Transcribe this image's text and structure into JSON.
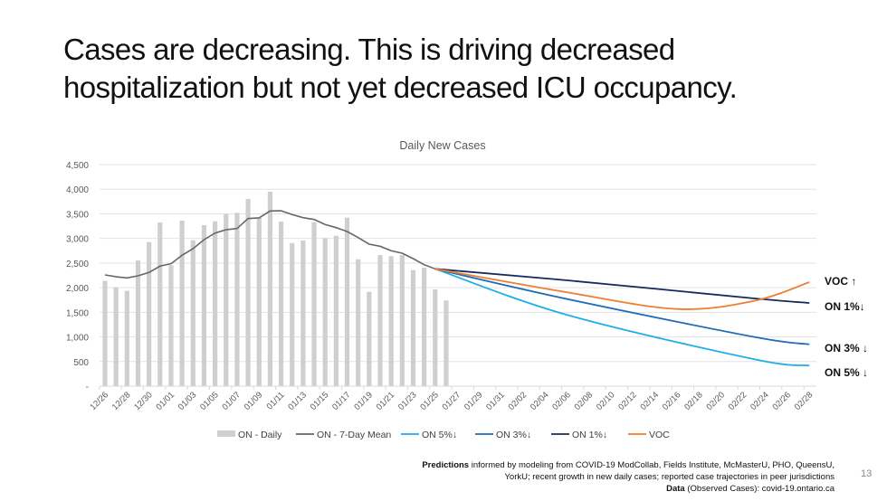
{
  "slide": {
    "title": "Cases are decreasing. This is driving decreased hospitalization but not yet decreased ICU occupancy.",
    "page_number": "13",
    "footer": {
      "predictions_label": "Predictions",
      "predictions_text": " informed by modeling from COVID-19 ModCollab, Fields Institute, McMasterU, PHO, QueensU, YorkU; recent growth in new daily cases; reported case trajectories in peer jurisdictions",
      "data_label": "Data",
      "data_text": " (Observed Cases): covid-19.ontario.ca"
    },
    "side_labels": {
      "voc": "VOC ↑",
      "on1": "ON 1%↓",
      "on3": "ON 3% ↓",
      "on5": "ON 5% ↓"
    }
  },
  "chart_data": {
    "type": "bar",
    "title": "Daily New Cases",
    "xlabel": "",
    "ylabel": "",
    "ylim": [
      0,
      4500
    ],
    "yticks": [
      0,
      500,
      1000,
      1500,
      2000,
      2500,
      3000,
      3500,
      4000,
      4500
    ],
    "ytick_labels": [
      "-",
      "500",
      "1,000",
      "1,500",
      "2,000",
      "2,500",
      "3,000",
      "3,500",
      "4,000",
      "4,500"
    ],
    "grid": true,
    "legend_position": "bottom",
    "x": [
      "12/26",
      "12/27",
      "12/28",
      "12/29",
      "12/30",
      "12/31",
      "01/01",
      "01/02",
      "01/03",
      "01/04",
      "01/05",
      "01/06",
      "01/07",
      "01/08",
      "01/09",
      "01/10",
      "01/11",
      "01/12",
      "01/13",
      "01/14",
      "01/15",
      "01/16",
      "01/17",
      "01/18",
      "01/19",
      "01/20",
      "01/21",
      "01/22",
      "01/23",
      "01/24",
      "01/25",
      "01/26",
      "01/27",
      "01/28",
      "01/29",
      "01/30",
      "01/31",
      "02/01",
      "02/02",
      "02/03",
      "02/04",
      "02/05",
      "02/06",
      "02/07",
      "02/08",
      "02/09",
      "02/10",
      "02/11",
      "02/12",
      "02/13",
      "02/14",
      "02/15",
      "02/16",
      "02/17",
      "02/18",
      "02/19",
      "02/20",
      "02/21",
      "02/22",
      "02/23",
      "02/24",
      "02/25",
      "02/26",
      "02/27",
      "02/28"
    ],
    "xtick_labels": [
      "12/26",
      "12/28",
      "12/30",
      "01/01",
      "01/03",
      "01/05",
      "01/07",
      "01/09",
      "01/11",
      "01/13",
      "01/15",
      "01/17",
      "01/19",
      "01/21",
      "01/23",
      "01/25",
      "01/27",
      "01/29",
      "01/31",
      "02/02",
      "02/04",
      "02/06",
      "02/08",
      "02/10",
      "02/12",
      "02/14",
      "02/16",
      "02/18",
      "02/20",
      "02/22",
      "02/24",
      "02/26",
      "02/28"
    ],
    "series": [
      {
        "name": "ON - Daily",
        "kind": "bar",
        "color": "#cfcfcf",
        "start": "12/26",
        "values": [
          2140,
          2010,
          1935,
          2553,
          2926,
          3325,
          2456,
          3361,
          2963,
          3270,
          3349,
          3496,
          3521,
          3803,
          3422,
          3949,
          3343,
          2908,
          2957,
          3331,
          3007,
          3055,
          3422,
          2577,
          1916,
          2663,
          2640,
          2663,
          2357,
          2406,
          1965,
          1740
        ]
      },
      {
        "name": "ON - 7-Day Mean",
        "kind": "line",
        "color": "#666666",
        "start": "12/26",
        "values": [
          2259,
          2222,
          2199,
          2241,
          2309,
          2438,
          2487,
          2658,
          2792,
          2976,
          3110,
          3178,
          3202,
          3404,
          3417,
          3557,
          3563,
          3485,
          3422,
          3385,
          3283,
          3220,
          3141,
          3018,
          2884,
          2841,
          2750,
          2700,
          2590,
          2467,
          2382
        ]
      },
      {
        "name": "ON 5%↓",
        "kind": "line",
        "color": "#1eaee8",
        "start": "01/25",
        "keypoints": {
          "01/25": 2382,
          "02/06": 1446,
          "02/23": 546,
          "02/28": 417
        }
      },
      {
        "name": "ON 3%↓",
        "kind": "line",
        "color": "#1f6cb8",
        "start": "01/25",
        "keypoints": {
          "01/25": 2382,
          "02/06": 1769,
          "02/23": 998,
          "02/28": 850
        }
      },
      {
        "name": "ON 1%↓",
        "kind": "line",
        "color": "#142b5c",
        "start": "01/25",
        "keypoints": {
          "01/25": 2382,
          "02/06": 2149,
          "02/23": 1782,
          "02/28": 1690
        }
      },
      {
        "name": "VOC",
        "kind": "line",
        "color": "#ef7d32",
        "start": "01/25",
        "keypoints": {
          "01/25": 2382,
          "02/06": 1905,
          "02/16": 1567,
          "02/23": 1733,
          "02/28": 2112
        }
      }
    ]
  }
}
